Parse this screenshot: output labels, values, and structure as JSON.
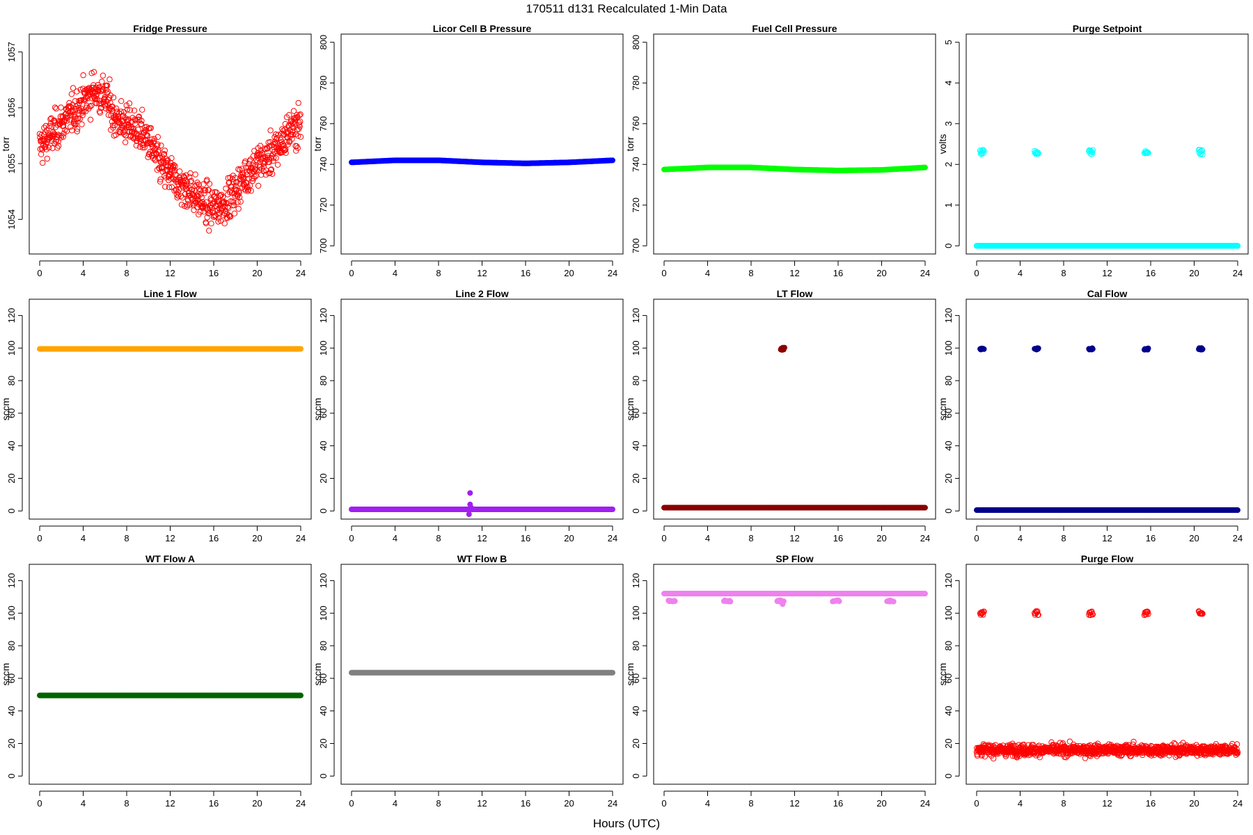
{
  "figure": {
    "title": "170511   d131   Recalculated 1-Min Data",
    "xlabel": "Hours (UTC)"
  },
  "chart_data": [
    {
      "id": "fridge-pressure",
      "type": "scatter",
      "title": "Fridge Pressure",
      "ylabel": "torr",
      "color": "#ff0000",
      "marker": "open",
      "xlim": [
        -0.96,
        24.96
      ],
      "ylim": [
        1053.38,
        1057.32
      ],
      "xticks": [
        0,
        4,
        8,
        12,
        16,
        20,
        24
      ],
      "yticks": [
        1054,
        1055,
        1056,
        1057
      ],
      "series": [
        {
          "kind": "band",
          "points": [
            [
              0,
              1055.3
            ],
            [
              1,
              1055.5
            ],
            [
              2,
              1055.7
            ],
            [
              3,
              1055.9
            ],
            [
              4,
              1056.1
            ],
            [
              5,
              1056.3
            ],
            [
              6,
              1056.2
            ],
            [
              7,
              1055.8
            ],
            [
              8,
              1055.7
            ],
            [
              9,
              1055.6
            ],
            [
              10,
              1055.4
            ],
            [
              11,
              1055.0
            ],
            [
              12,
              1054.8
            ],
            [
              13,
              1054.6
            ],
            [
              14,
              1054.5
            ],
            [
              15,
              1054.3
            ],
            [
              16,
              1054.2
            ],
            [
              17,
              1054.3
            ],
            [
              18,
              1054.5
            ],
            [
              19,
              1054.8
            ],
            [
              20,
              1055.0
            ],
            [
              21,
              1055.1
            ],
            [
              22,
              1055.3
            ],
            [
              23,
              1055.6
            ],
            [
              24,
              1055.7
            ]
          ],
          "spread": 0.42,
          "n": 900
        }
      ]
    },
    {
      "id": "licor-cell-b-pressure",
      "type": "scatter",
      "title": "Licor Cell B Pressure",
      "ylabel": "torr",
      "color": "#0000ff",
      "marker": "filled",
      "xlim": [
        -0.96,
        24.96
      ],
      "ylim": [
        696,
        804
      ],
      "xticks": [
        0,
        4,
        8,
        12,
        16,
        20,
        24
      ],
      "yticks": [
        700,
        720,
        740,
        760,
        780,
        800
      ],
      "series": [
        {
          "kind": "line",
          "points": [
            [
              0,
              741.0
            ],
            [
              4,
              742.0
            ],
            [
              8,
              742.0
            ],
            [
              12,
              741.0
            ],
            [
              16,
              740.5
            ],
            [
              20,
              741.0
            ],
            [
              24,
              742.0
            ]
          ]
        }
      ]
    },
    {
      "id": "fuel-cell-pressure",
      "type": "scatter",
      "title": "Fuel Cell Pressure",
      "ylabel": "torr",
      "color": "#00ff00",
      "marker": "filled",
      "xlim": [
        -0.96,
        24.96
      ],
      "ylim": [
        696,
        804
      ],
      "xticks": [
        0,
        4,
        8,
        12,
        16,
        20,
        24
      ],
      "yticks": [
        700,
        720,
        740,
        760,
        780,
        800
      ],
      "series": [
        {
          "kind": "line",
          "points": [
            [
              0,
              737.5
            ],
            [
              4,
              738.5
            ],
            [
              8,
              738.5
            ],
            [
              12,
              737.5
            ],
            [
              16,
              737.0
            ],
            [
              20,
              737.3
            ],
            [
              24,
              738.5
            ]
          ]
        }
      ]
    },
    {
      "id": "purge-setpoint",
      "type": "scatter",
      "title": "Purge Setpoint",
      "ylabel": "volts",
      "color": "#00ffff",
      "marker": "open",
      "xlim": [
        -0.96,
        24.96
      ],
      "ylim": [
        -0.2,
        5.2
      ],
      "xticks": [
        0,
        4,
        8,
        12,
        16,
        20,
        24
      ],
      "yticks": [
        0,
        1,
        2,
        3,
        4,
        5
      ],
      "series": [
        {
          "kind": "line",
          "points": [
            [
              0,
              0
            ],
            [
              24,
              0
            ]
          ]
        },
        {
          "kind": "clusters",
          "value": 2.3,
          "spread": 0.06,
          "at": [
            0.5,
            5.5,
            10.5,
            15.6,
            20.6
          ]
        }
      ]
    },
    {
      "id": "line-1-flow",
      "type": "scatter",
      "title": "Line 1 Flow",
      "ylabel": "sccm",
      "color": "#ffa500",
      "marker": "filled",
      "xlim": [
        -0.96,
        24.96
      ],
      "ylim": [
        -5,
        130
      ],
      "xticks": [
        0,
        4,
        8,
        12,
        16,
        20,
        24
      ],
      "yticks": [
        0,
        20,
        40,
        60,
        80,
        100,
        120
      ],
      "series": [
        {
          "kind": "line",
          "points": [
            [
              0,
              99.5
            ],
            [
              24,
              99.5
            ]
          ]
        }
      ]
    },
    {
      "id": "line-2-flow",
      "type": "scatter",
      "title": "Line 2 Flow",
      "ylabel": "sccm",
      "color": "#a020f0",
      "marker": "filled",
      "xlim": [
        -0.96,
        24.96
      ],
      "ylim": [
        -5,
        130
      ],
      "xticks": [
        0,
        4,
        8,
        12,
        16,
        20,
        24
      ],
      "yticks": [
        0,
        20,
        40,
        60,
        80,
        100,
        120
      ],
      "series": [
        {
          "kind": "line",
          "points": [
            [
              0,
              1
            ],
            [
              24,
              1
            ]
          ]
        },
        {
          "kind": "points",
          "points": [
            [
              10.9,
              11
            ],
            [
              10.9,
              4
            ],
            [
              10.8,
              -2
            ],
            [
              11.0,
              2
            ]
          ]
        }
      ]
    },
    {
      "id": "lt-flow",
      "type": "scatter",
      "title": "LT Flow",
      "ylabel": "sccm",
      "color": "#8b0000",
      "marker": "filled",
      "xlim": [
        -0.96,
        24.96
      ],
      "ylim": [
        -5,
        130
      ],
      "xticks": [
        0,
        4,
        8,
        12,
        16,
        20,
        24
      ],
      "yticks": [
        0,
        20,
        40,
        60,
        80,
        100,
        120
      ],
      "series": [
        {
          "kind": "line",
          "points": [
            [
              0,
              2
            ],
            [
              24,
              2
            ]
          ]
        },
        {
          "kind": "clusters",
          "value": 99.5,
          "spread": 0.8,
          "at": [
            10.9
          ]
        }
      ]
    },
    {
      "id": "cal-flow",
      "type": "scatter",
      "title": "Cal Flow",
      "ylabel": "sccm",
      "color": "#00008b",
      "marker": "filled",
      "xlim": [
        -0.96,
        24.96
      ],
      "ylim": [
        -5,
        130
      ],
      "xticks": [
        0,
        4,
        8,
        12,
        16,
        20,
        24
      ],
      "yticks": [
        0,
        20,
        40,
        60,
        80,
        100,
        120
      ],
      "series": [
        {
          "kind": "line",
          "points": [
            [
              0,
              0.5
            ],
            [
              24,
              0.5
            ]
          ]
        },
        {
          "kind": "clusters",
          "value": 99.5,
          "spread": 0.5,
          "at": [
            0.5,
            5.5,
            10.5,
            15.6,
            20.6
          ]
        }
      ]
    },
    {
      "id": "wt-flow-a",
      "type": "scatter",
      "title": "WT Flow A",
      "ylabel": "sccm",
      "color": "#006400",
      "marker": "filled",
      "xlim": [
        -0.96,
        24.96
      ],
      "ylim": [
        -5,
        130
      ],
      "xticks": [
        0,
        4,
        8,
        12,
        16,
        20,
        24
      ],
      "yticks": [
        0,
        20,
        40,
        60,
        80,
        100,
        120
      ],
      "series": [
        {
          "kind": "line",
          "points": [
            [
              0,
              49.5
            ],
            [
              24,
              49.5
            ]
          ]
        }
      ]
    },
    {
      "id": "wt-flow-b",
      "type": "scatter",
      "title": "WT Flow B",
      "ylabel": "sccm",
      "color": "#808080",
      "marker": "filled",
      "xlim": [
        -0.96,
        24.96
      ],
      "ylim": [
        -5,
        130
      ],
      "xticks": [
        0,
        4,
        8,
        12,
        16,
        20,
        24
      ],
      "yticks": [
        0,
        20,
        40,
        60,
        80,
        100,
        120
      ],
      "series": [
        {
          "kind": "line",
          "points": [
            [
              0,
              63.5
            ],
            [
              24,
              63.5
            ]
          ]
        }
      ]
    },
    {
      "id": "sp-flow",
      "type": "scatter",
      "title": "SP Flow",
      "ylabel": "sccm",
      "color": "#ee82ee",
      "marker": "filled",
      "xlim": [
        -0.96,
        24.96
      ],
      "ylim": [
        -5,
        130
      ],
      "xticks": [
        0,
        4,
        8,
        12,
        16,
        20,
        24
      ],
      "yticks": [
        0,
        20,
        40,
        60,
        80,
        100,
        120
      ],
      "series": [
        {
          "kind": "line",
          "points": [
            [
              0,
              112
            ],
            [
              24,
              112
            ]
          ]
        },
        {
          "kind": "clusters",
          "value": 107.5,
          "spread": 0.4,
          "at": [
            0.7,
            5.8,
            10.7,
            15.8,
            20.8
          ],
          "width": 0.6
        },
        {
          "kind": "points",
          "points": [
            [
              10.9,
              105.5
            ],
            [
              10.7,
              108
            ]
          ]
        }
      ]
    },
    {
      "id": "purge-flow",
      "type": "scatter",
      "title": "Purge Flow",
      "ylabel": "sccm",
      "color": "#ff0000",
      "marker": "open",
      "xlim": [
        -0.96,
        24.96
      ],
      "ylim": [
        -5,
        130
      ],
      "xticks": [
        0,
        4,
        8,
        12,
        16,
        20,
        24
      ],
      "yticks": [
        0,
        20,
        40,
        60,
        80,
        100,
        120
      ],
      "series": [
        {
          "kind": "band",
          "points": [
            [
              0,
              16
            ],
            [
              24,
              16
            ]
          ],
          "spread": 4,
          "n": 1100
        },
        {
          "kind": "clusters",
          "value": 100,
          "spread": 1.2,
          "at": [
            0.5,
            5.5,
            10.5,
            15.6,
            20.6
          ]
        }
      ]
    }
  ]
}
